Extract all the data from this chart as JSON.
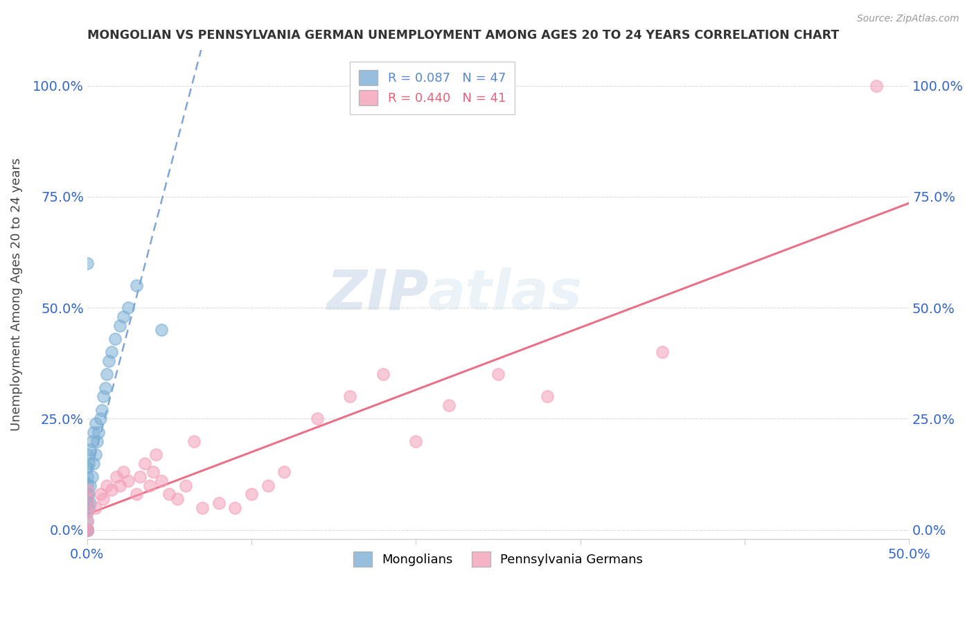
{
  "title": "MONGOLIAN VS PENNSYLVANIA GERMAN UNEMPLOYMENT AMONG AGES 20 TO 24 YEARS CORRELATION CHART",
  "source": "Source: ZipAtlas.com",
  "ylabel": "Unemployment Among Ages 20 to 24 years",
  "xlim": [
    0.0,
    0.5
  ],
  "ylim": [
    -0.02,
    1.08
  ],
  "R_mongolian": 0.087,
  "N_mongolian": 47,
  "R_pg": 0.44,
  "N_pg": 41,
  "color_mongolian": "#7BAFD4",
  "color_pg": "#F4A0B8",
  "line_mongolian": "#5588CC",
  "line_pg": "#E8607A",
  "watermark": "ZIPatlas",
  "mongolian_x": [
    0.0,
    0.0,
    0.0,
    0.0,
    0.0,
    0.0,
    0.0,
    0.0,
    0.0,
    0.0,
    0.0,
    0.0,
    0.0,
    0.0,
    0.0,
    0.0,
    0.0,
    0.0,
    0.0,
    0.0,
    0.001,
    0.001,
    0.001,
    0.002,
    0.002,
    0.002,
    0.003,
    0.003,
    0.004,
    0.004,
    0.005,
    0.005,
    0.006,
    0.007,
    0.008,
    0.009,
    0.01,
    0.011,
    0.012,
    0.013,
    0.015,
    0.017,
    0.02,
    0.022,
    0.025,
    0.03,
    0.045
  ],
  "mongolian_y": [
    0.0,
    0.0,
    0.0,
    0.0,
    0.0,
    0.0,
    0.0,
    0.0,
    0.0,
    0.0,
    0.02,
    0.04,
    0.06,
    0.07,
    0.08,
    0.1,
    0.12,
    0.14,
    0.17,
    0.6,
    0.05,
    0.08,
    0.15,
    0.06,
    0.1,
    0.18,
    0.12,
    0.2,
    0.15,
    0.22,
    0.17,
    0.24,
    0.2,
    0.22,
    0.25,
    0.27,
    0.3,
    0.32,
    0.35,
    0.38,
    0.4,
    0.43,
    0.46,
    0.48,
    0.5,
    0.55,
    0.45
  ],
  "pg_x": [
    0.0,
    0.0,
    0.0,
    0.0,
    0.0,
    0.0,
    0.005,
    0.008,
    0.01,
    0.012,
    0.015,
    0.018,
    0.02,
    0.022,
    0.025,
    0.03,
    0.032,
    0.035,
    0.038,
    0.04,
    0.042,
    0.045,
    0.05,
    0.055,
    0.06,
    0.065,
    0.07,
    0.08,
    0.09,
    0.1,
    0.11,
    0.12,
    0.14,
    0.16,
    0.18,
    0.2,
    0.22,
    0.25,
    0.28,
    0.35,
    0.48
  ],
  "pg_y": [
    0.0,
    0.0,
    0.02,
    0.04,
    0.07,
    0.09,
    0.05,
    0.08,
    0.07,
    0.1,
    0.09,
    0.12,
    0.1,
    0.13,
    0.11,
    0.08,
    0.12,
    0.15,
    0.1,
    0.13,
    0.17,
    0.11,
    0.08,
    0.07,
    0.1,
    0.2,
    0.05,
    0.06,
    0.05,
    0.08,
    0.1,
    0.13,
    0.25,
    0.3,
    0.35,
    0.2,
    0.28,
    0.35,
    0.3,
    0.4,
    1.0
  ]
}
